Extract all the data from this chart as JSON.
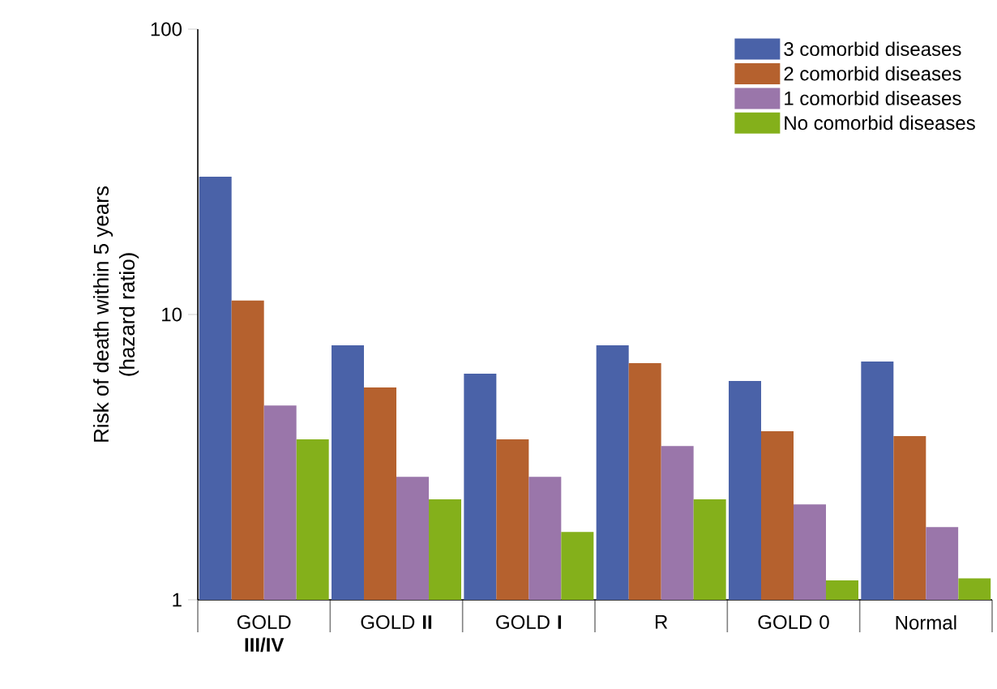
{
  "chart_data": {
    "type": "bar",
    "ylabel": "Risk of death within 5 years\n(hazard ratio)",
    "categories": [
      "GOLD **III/IV**",
      "GOLD **II**",
      "GOLD **I**",
      "R",
      "GOLD 0",
      "Normal"
    ],
    "series": [
      {
        "name": "3 comorbid diseases",
        "color": "#4a62a8",
        "values": [
          30.4,
          7.8,
          6.2,
          7.8,
          5.85,
          6.84
        ]
      },
      {
        "name": "2 comorbid diseases",
        "color": "#b5612e",
        "values": [
          11.2,
          5.55,
          3.65,
          6.75,
          3.9,
          3.75
        ]
      },
      {
        "name": "1 comorbid diseases",
        "color": "#9a76aa",
        "values": [
          4.8,
          2.7,
          2.7,
          3.46,
          2.16,
          1.8
        ]
      },
      {
        "name": "No comorbid diseases",
        "color": "#84b01b",
        "values": [
          3.65,
          2.25,
          1.73,
          2.25,
          1.17,
          1.19
        ]
      }
    ],
    "log": "y",
    "ylim": [
      1,
      100
    ],
    "yticks": [
      1,
      10,
      100
    ],
    "legend": "top right",
    "grid": false
  }
}
